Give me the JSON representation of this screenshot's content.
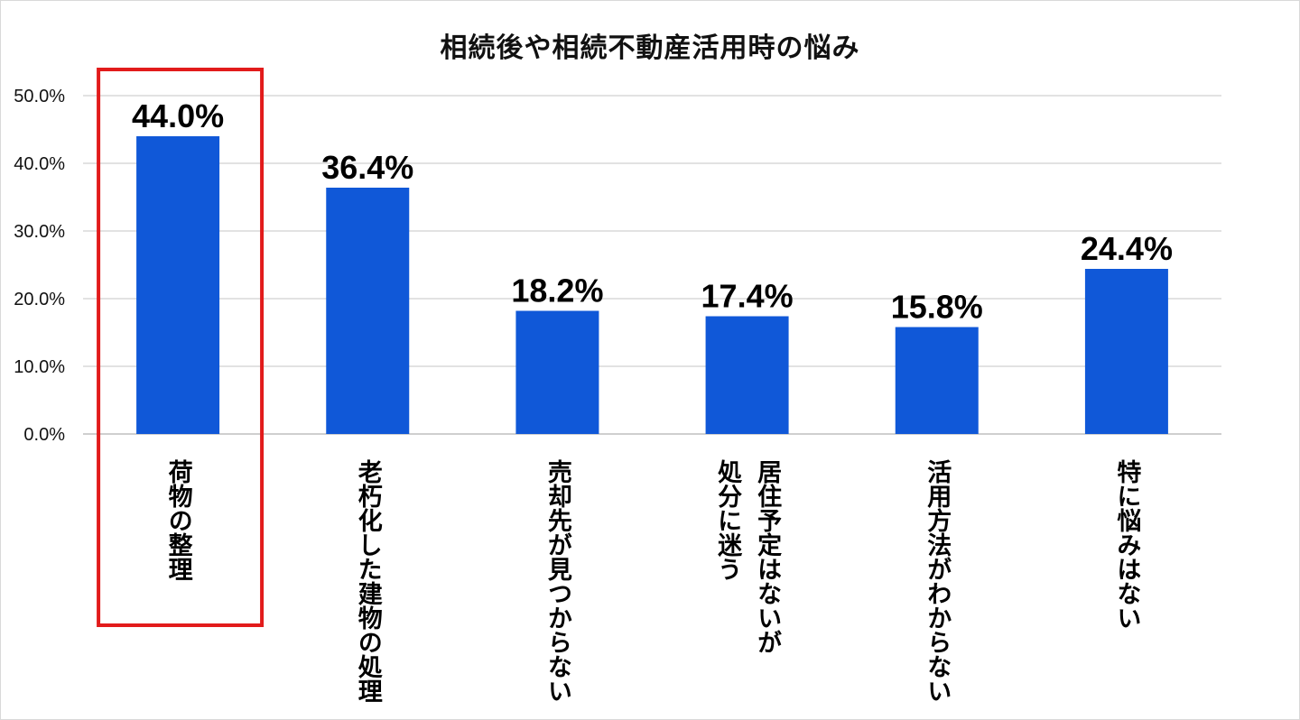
{
  "chart_data": {
    "type": "bar",
    "title": "相続後や相続不動産活用時の悩み",
    "categories": [
      [
        "荷物の整理"
      ],
      [
        "老朽化した建物の処理"
      ],
      [
        "売却先が見つからない"
      ],
      [
        "居住予定はないが",
        "処分に迷う"
      ],
      [
        "活用方法がわからない"
      ],
      [
        "特に悩みはない"
      ]
    ],
    "values": [
      44.0,
      36.4,
      18.2,
      17.4,
      15.8,
      24.4
    ],
    "value_labels": [
      "44.0%",
      "36.4%",
      "18.2%",
      "17.4%",
      "15.8%",
      "24.4%"
    ],
    "y_ticks": [
      "0.0%",
      "10.0%",
      "20.0%",
      "30.0%",
      "40.0%",
      "50.0%"
    ],
    "ylim": [
      0,
      50
    ],
    "grid": true,
    "xlabel": "",
    "ylabel": "",
    "bar_color": "#1058d8",
    "highlight_index": 0,
    "highlight_color": "#e21b1b"
  }
}
